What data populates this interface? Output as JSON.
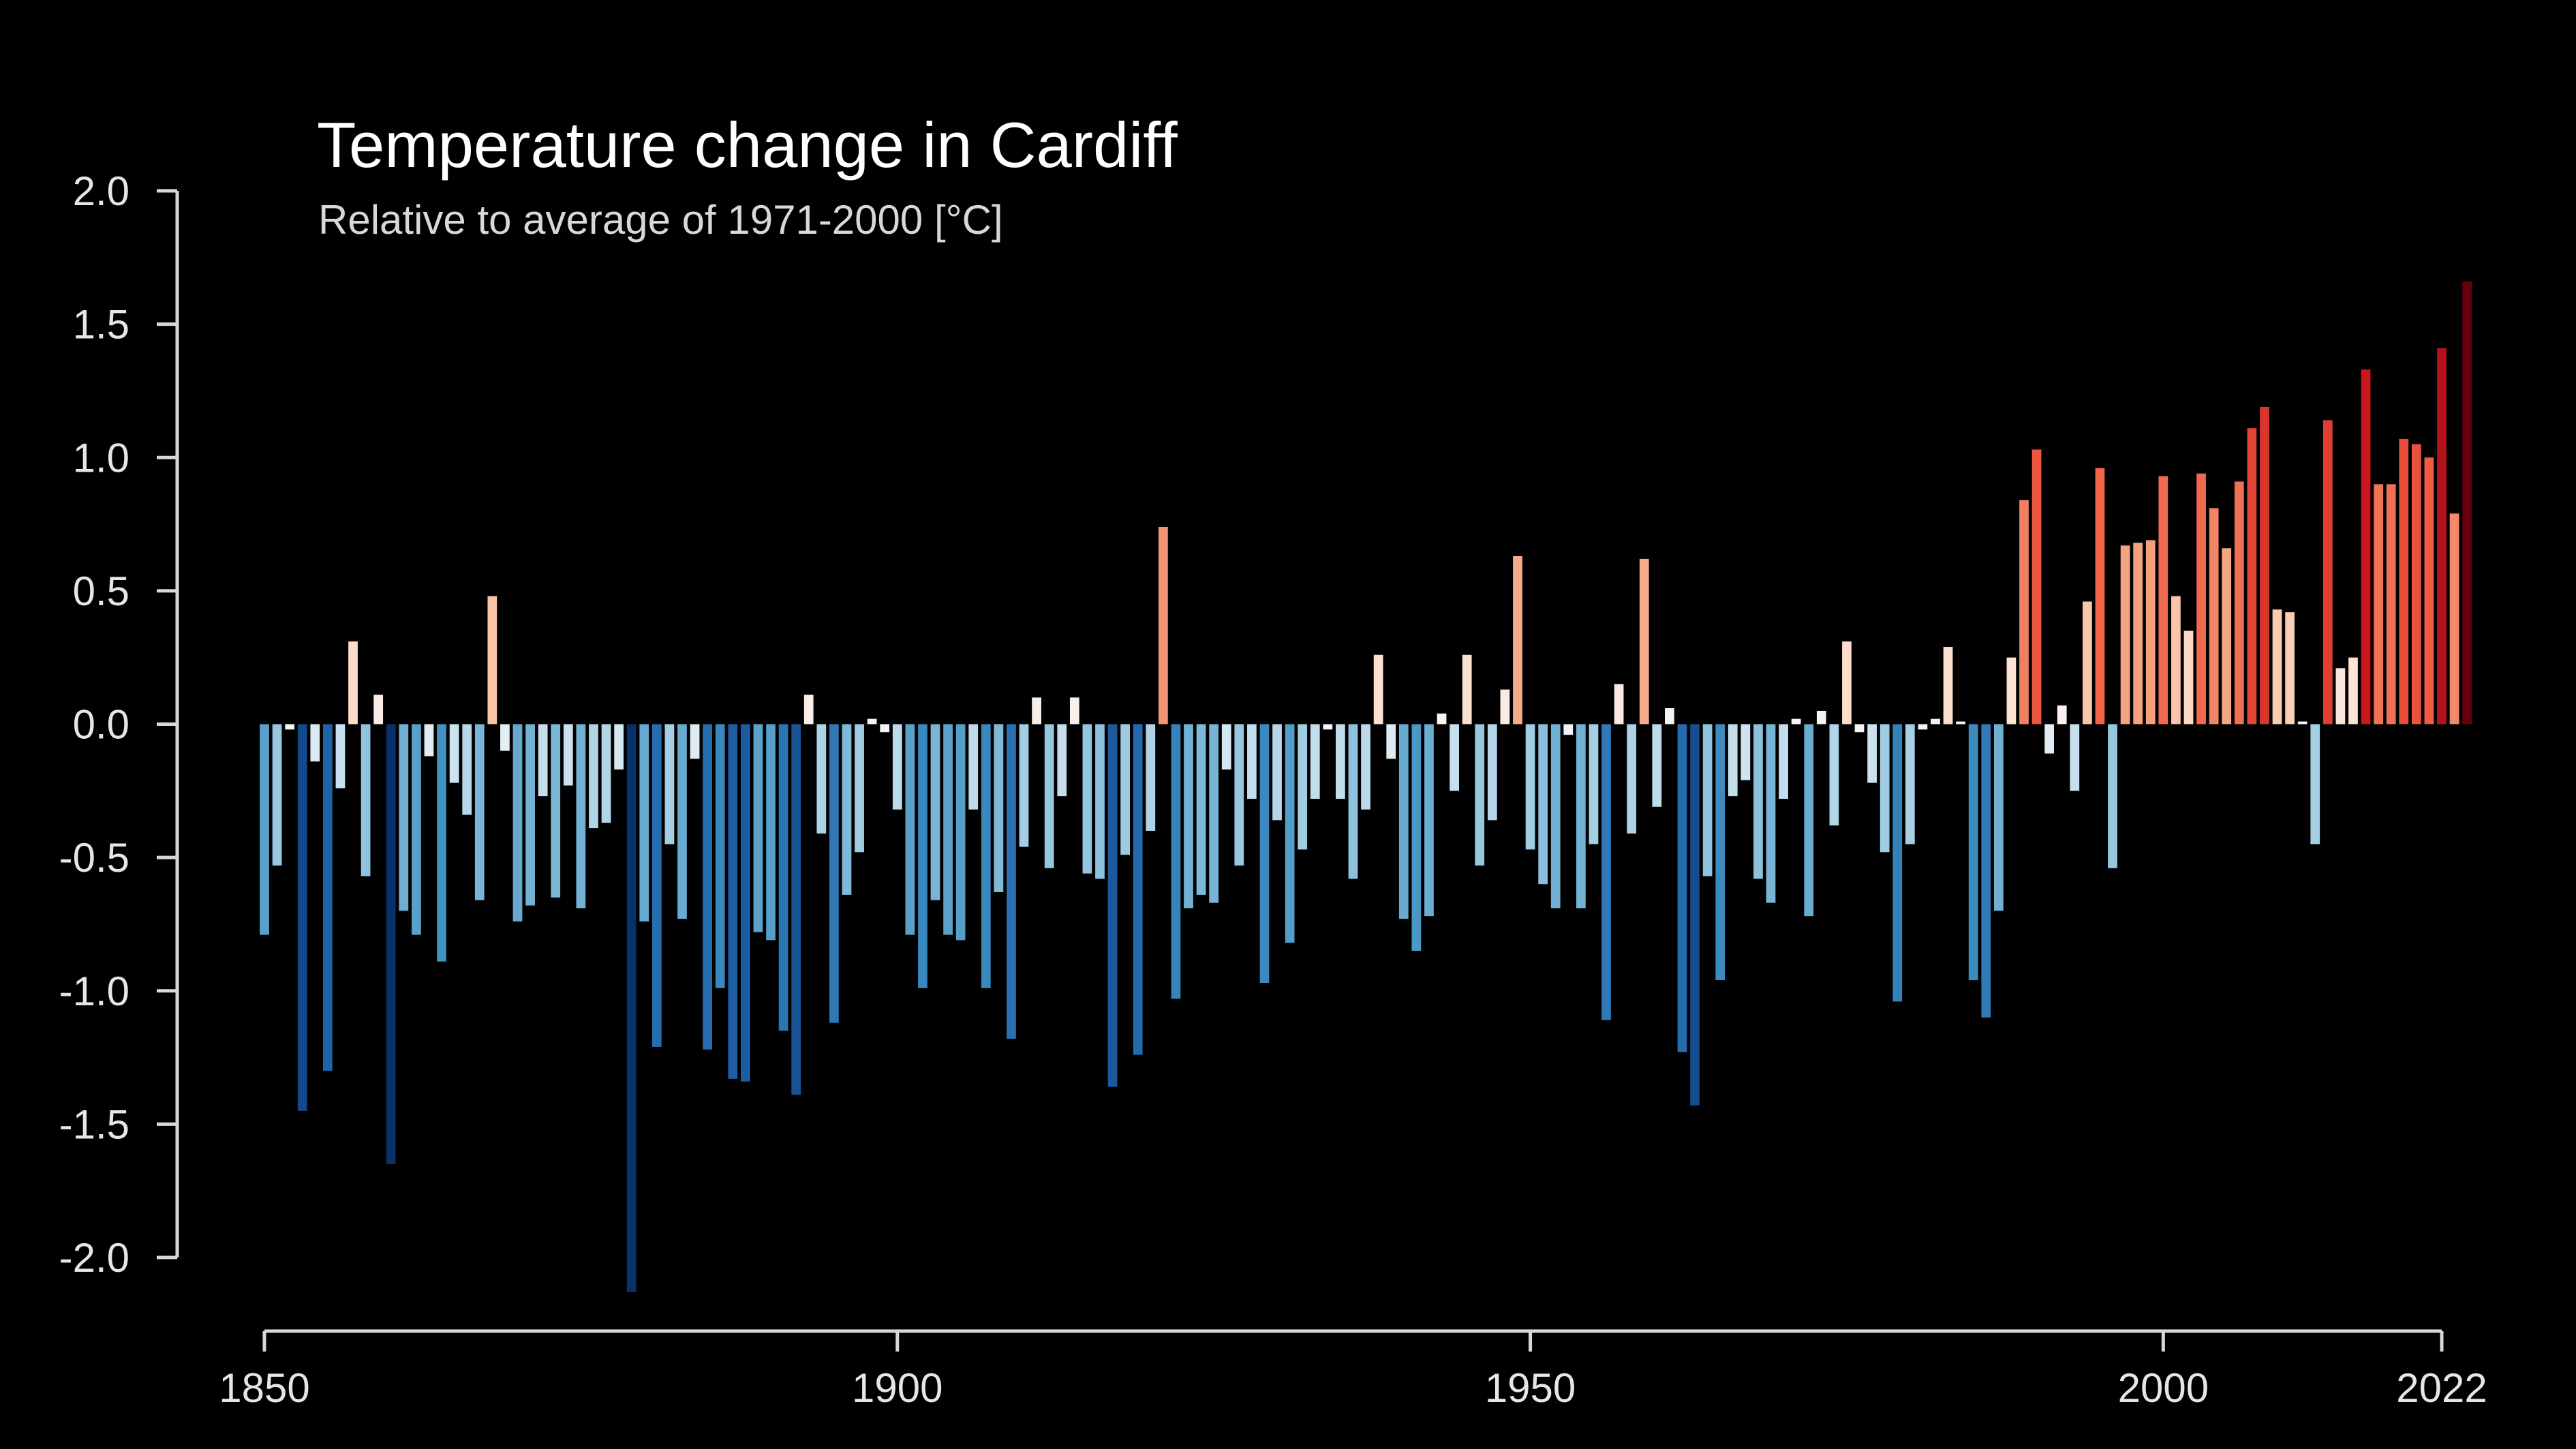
{
  "chart_data": {
    "type": "bar",
    "title": "Temperature change in Cardiff",
    "subtitle": "Relative to average of 1971-2000  [°C]",
    "xlabel": "",
    "ylabel": "",
    "xlim": [
      1850,
      2022
    ],
    "ylim": [
      -2.0,
      2.0
    ],
    "x_ticks": [
      1850,
      1900,
      1950,
      2000,
      2022
    ],
    "x_tick_labels": [
      "1850",
      "1900",
      "1950",
      "2000",
      "2022"
    ],
    "y_ticks": [
      2.0,
      1.5,
      1.0,
      0.5,
      0.0,
      -0.5,
      -1.0,
      -1.5,
      -2.0
    ],
    "y_tick_labels": [
      "2.0",
      "1.5",
      "1.0",
      "0.5",
      "0.0",
      "-0.5",
      "-1.0",
      "-1.5",
      "-2.0"
    ],
    "grid": false,
    "color_scale": {
      "negative_max": "#08306b",
      "neutral": "#f7f7f7",
      "positive_max": "#67000d"
    },
    "start_year": 1850,
    "values": [
      -0.79,
      -0.53,
      -0.02,
      -1.45,
      -0.14,
      -1.3,
      -0.24,
      0.31,
      -0.57,
      0.11,
      -1.65,
      -0.7,
      -0.79,
      -0.12,
      -0.89,
      -0.22,
      -0.34,
      -0.66,
      0.48,
      -0.1,
      -0.74,
      -0.68,
      -0.27,
      -0.65,
      -0.23,
      -0.69,
      -0.39,
      -0.37,
      -0.17,
      -2.13,
      -0.74,
      -1.21,
      -0.45,
      -0.73,
      -0.13,
      -1.22,
      -0.99,
      -1.33,
      -1.34,
      -0.78,
      -0.81,
      -1.15,
      -1.39,
      0.11,
      -0.41,
      -1.12,
      -0.64,
      -0.48,
      0.02,
      -0.03,
      -0.32,
      -0.79,
      -0.99,
      -0.66,
      -0.79,
      -0.81,
      -0.32,
      -0.99,
      -0.63,
      -1.18,
      -0.46,
      0.1,
      -0.54,
      -0.27,
      0.1,
      -0.56,
      -0.58,
      -1.36,
      -0.49,
      -1.24,
      -0.4,
      0.74,
      -1.03,
      -0.69,
      -0.64,
      -0.67,
      -0.17,
      -0.53,
      -0.28,
      -0.97,
      -0.36,
      -0.82,
      -0.47,
      -0.28,
      -0.02,
      -0.28,
      -0.58,
      -0.32,
      0.26,
      -0.13,
      -0.73,
      -0.85,
      -0.72,
      0.04,
      -0.25,
      0.26,
      -0.53,
      -0.36,
      0.13,
      0.63,
      -0.47,
      -0.6,
      -0.69,
      -0.04,
      -0.69,
      -0.45,
      -1.11,
      0.15,
      -0.41,
      0.62,
      -0.31,
      0.06,
      -1.23,
      -1.43,
      -0.57,
      -0.96,
      -0.27,
      -0.21,
      -0.58,
      -0.67,
      -0.28,
      0.02,
      -0.72,
      0.05,
      -0.38,
      0.31,
      -0.03,
      -0.22,
      -0.48,
      -1.04,
      -0.45,
      -0.02,
      0.02,
      0.29,
      0.01,
      -0.96,
      -1.1,
      -0.7,
      0.25,
      0.84,
      1.03,
      -0.11,
      0.07,
      -0.25,
      0.46,
      0.96,
      -0.54,
      0.67,
      0.68,
      0.69,
      0.93,
      0.48,
      0.35,
      0.94,
      0.81,
      0.66,
      0.91,
      1.11,
      1.19,
      0.43,
      0.42,
      0.01,
      -0.45,
      1.14,
      0.21,
      0.25,
      1.33,
      0.9,
      0.9,
      1.07,
      1.05,
      1.0,
      1.41,
      0.79,
      1.66
    ]
  }
}
